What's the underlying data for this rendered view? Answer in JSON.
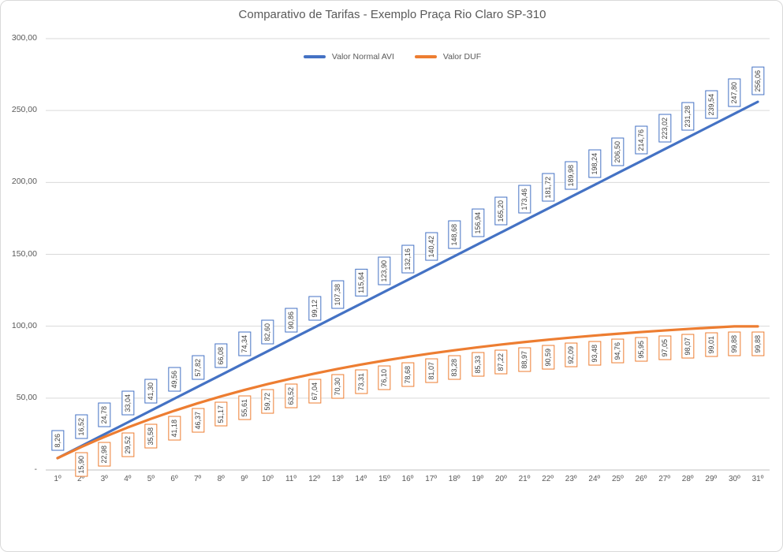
{
  "chart_data": {
    "type": "line",
    "title": "Comparativo de Tarifas - Exemplo Praça Rio Claro SP-310",
    "xlabel": "",
    "ylabel": "",
    "ylim": [
      0,
      300
    ],
    "grid": true,
    "legend_position": "top",
    "value_decimal_separator": ",",
    "categories": [
      "1º",
      "2º",
      "3º",
      "4º",
      "5º",
      "6º",
      "7º",
      "8º",
      "9º",
      "10º",
      "11º",
      "12º",
      "13º",
      "14º",
      "15º",
      "16º",
      "17º",
      "18º",
      "19º",
      "20º",
      "21º",
      "22º",
      "23º",
      "24º",
      "25º",
      "26º",
      "27º",
      "28º",
      "29º",
      "30º",
      "31º"
    ],
    "y_ticks": [
      {
        "value": 0,
        "label": "-"
      },
      {
        "value": 50,
        "label": "50,00"
      },
      {
        "value": 100,
        "label": "100,00"
      },
      {
        "value": 150,
        "label": "150,00"
      },
      {
        "value": 200,
        "label": "200,00"
      },
      {
        "value": 250,
        "label": "250,00"
      },
      {
        "value": 300,
        "label": "300,00"
      }
    ],
    "series": [
      {
        "name": "Valor Normal AVI",
        "color": "#4472C4",
        "label_position": "above",
        "labels_visible_from": 1,
        "values": [
          8.26,
          16.52,
          24.78,
          33.04,
          41.3,
          49.56,
          57.82,
          66.08,
          74.34,
          82.6,
          90.86,
          99.12,
          107.38,
          115.64,
          123.9,
          132.16,
          140.42,
          148.68,
          156.94,
          165.2,
          173.46,
          181.72,
          189.98,
          198.24,
          206.5,
          214.76,
          223.02,
          231.28,
          239.54,
          247.8,
          256.06
        ]
      },
      {
        "name": "Valor DUF",
        "color": "#ED7D31",
        "label_position": "below",
        "labels_visible_from": 2,
        "values": [
          8.26,
          15.9,
          22.98,
          29.52,
          35.58,
          41.18,
          46.37,
          51.17,
          55.61,
          59.72,
          63.52,
          67.04,
          70.3,
          73.31,
          76.1,
          78.68,
          81.07,
          83.28,
          85.33,
          87.22,
          88.97,
          90.59,
          92.09,
          93.48,
          94.76,
          95.95,
          97.05,
          98.07,
          99.01,
          99.88,
          99.88
        ]
      }
    ],
    "colors": {
      "gridline": "#D9D9D9",
      "axis_line": "#BFBFBF",
      "title_text": "#595959",
      "tick_text": "#595959",
      "data_label_text": "#404040",
      "frame_border": "#D9D9D9"
    }
  }
}
